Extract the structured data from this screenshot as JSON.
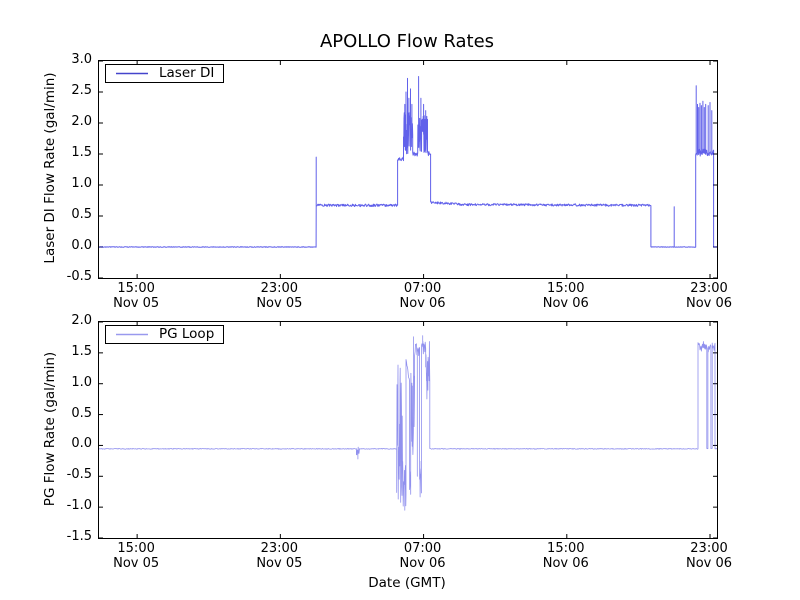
{
  "figure": {
    "title": "APOLLO Flow Rates",
    "background_color": "#ffffff",
    "axis_color": "#000000"
  },
  "x_axis": {
    "label": "Date (GMT)",
    "range_hours_from_nov05_0000": [
      12.87,
      47.39
    ],
    "ticks": [
      {
        "t": 15,
        "time": "15:00",
        "date": "Nov 05"
      },
      {
        "t": 23,
        "time": "23:00",
        "date": "Nov 05"
      },
      {
        "t": 31,
        "time": "07:00",
        "date": "Nov 06"
      },
      {
        "t": 39,
        "time": "15:00",
        "date": "Nov 06"
      },
      {
        "t": 47,
        "time": "23:00",
        "date": "Nov 06"
      }
    ]
  },
  "chart_data": [
    {
      "type": "line",
      "ylabel": "Laser DI Flow Rate (gal/min)",
      "legend_label": "Laser DI",
      "legend_color": "#4444cc",
      "line_color": "#0000dd",
      "line_width": 1.0,
      "line_opacity": 0.62,
      "ylim": [
        -0.5,
        3.0
      ],
      "ytick_labels": [
        "3.0",
        "2.5",
        "2.0",
        "1.5",
        "1.0",
        "0.5",
        "0.0",
        "-0.5"
      ],
      "segments_t0_t1_value_noise_endvalue": [
        [
          12.87,
          24.995,
          0.0,
          0.005
        ],
        [
          25.0,
          29.55,
          0.672,
          0.02
        ],
        [
          29.55,
          29.88,
          1.42,
          0.03
        ],
        [
          29.88,
          30.39,
          1.85,
          0.36
        ],
        [
          30.39,
          30.67,
          1.5,
          0.035
        ],
        [
          30.67,
          31.22,
          1.82,
          0.3
        ],
        [
          31.22,
          31.39,
          1.52,
          0.05
        ],
        [
          31.39,
          33.0,
          0.72,
          0.018,
          0.69
        ],
        [
          33.0,
          43.7,
          0.685,
          0.018,
          0.672
        ],
        [
          43.7,
          46.2,
          0.0,
          0.004
        ],
        [
          46.2,
          47.2,
          1.52,
          0.06
        ],
        [
          47.2,
          47.39,
          0.0,
          0.004
        ]
      ],
      "spikes_t_peak": [
        [
          25.0,
          1.45
        ],
        [
          29.95,
          2.3
        ],
        [
          30.02,
          2.5
        ],
        [
          30.1,
          2.72
        ],
        [
          30.18,
          2.4
        ],
        [
          30.27,
          2.55
        ],
        [
          30.35,
          2.3
        ],
        [
          30.72,
          2.75
        ],
        [
          30.85,
          2.4
        ],
        [
          31.0,
          2.3
        ],
        [
          31.12,
          2.2
        ],
        [
          45.0,
          0.65
        ],
        [
          46.23,
          2.6
        ],
        [
          46.3,
          2.3
        ],
        [
          46.37,
          2.25
        ],
        [
          46.44,
          2.32
        ],
        [
          46.52,
          2.28
        ],
        [
          46.6,
          2.35
        ],
        [
          46.68,
          2.25
        ],
        [
          46.76,
          2.3
        ],
        [
          46.9,
          2.28
        ],
        [
          47.0,
          2.33
        ],
        [
          47.1,
          2.2
        ]
      ]
    },
    {
      "type": "line",
      "ylabel": "PG Flow Rate (gal/min)",
      "legend_label": "PG Loop",
      "legend_color": "#9999ee",
      "line_color": "#2222dd",
      "line_width": 0.8,
      "line_opacity": 0.5,
      "ylim": [
        -1.5,
        2.0
      ],
      "ytick_labels": [
        "2.0",
        "1.5",
        "1.0",
        "0.5",
        "0.0",
        "-0.5",
        "-1.0",
        "-1.5"
      ],
      "segments_t0_t1_value_noise_endvalue": [
        [
          12.87,
          27.25,
          -0.055,
          0.006
        ],
        [
          27.25,
          27.42,
          -0.09,
          0.08
        ],
        [
          27.42,
          29.5,
          -0.055,
          0.006
        ],
        [
          29.5,
          29.85,
          0.2,
          1.15
        ],
        [
          29.85,
          30.02,
          -0.6,
          0.42
        ],
        [
          30.02,
          30.22,
          1.4,
          0.02,
          1.02
        ],
        [
          30.22,
          30.28,
          -0.7,
          0.3
        ],
        [
          30.28,
          30.5,
          0.5,
          0.85
        ],
        [
          30.5,
          30.78,
          1.55,
          0.1
        ],
        [
          30.78,
          30.88,
          -0.55,
          0.35
        ],
        [
          30.88,
          31.12,
          1.6,
          0.12
        ],
        [
          31.12,
          31.35,
          1.25,
          0.5
        ],
        [
          31.35,
          46.33,
          -0.055,
          0.006
        ],
        [
          46.33,
          46.82,
          1.6,
          0.09
        ],
        [
          46.82,
          46.88,
          -0.05,
          0.004
        ],
        [
          46.88,
          47.05,
          1.58,
          0.08
        ],
        [
          47.05,
          47.12,
          -0.05,
          0.004
        ],
        [
          47.12,
          47.28,
          1.6,
          0.08
        ],
        [
          47.28,
          47.39,
          -0.055,
          0.004
        ]
      ],
      "spikes_t_peak": [
        [
          27.33,
          -0.22
        ],
        [
          29.95,
          -1.05
        ],
        [
          30.44,
          1.76
        ],
        [
          30.65,
          -0.5
        ],
        [
          30.95,
          1.78
        ]
      ]
    }
  ]
}
